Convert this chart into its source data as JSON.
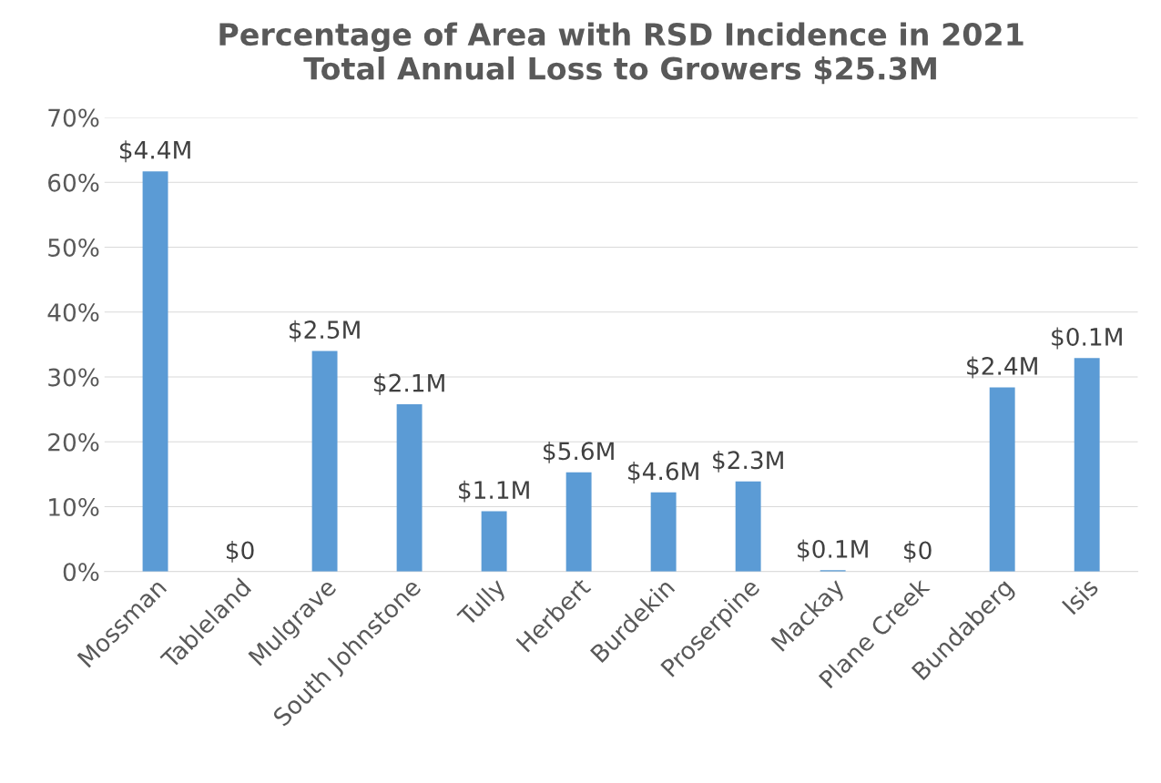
{
  "chart_data": {
    "type": "bar",
    "title": "Percentage of Area with RSD Incidence in 2021\nTotal Annual Loss to Growers $25.3M",
    "categories": [
      "Mossman",
      "Tableland",
      "Mulgrave",
      "South Johnstone",
      "Tully",
      "Herbert",
      "Burdekin",
      "Proserpine",
      "Mackay",
      "Plane Creek",
      "Bundaberg",
      "Isis"
    ],
    "values": [
      61.7,
      0,
      34.0,
      25.8,
      9.3,
      15.3,
      12.2,
      13.9,
      0.2,
      0,
      28.4,
      32.9
    ],
    "annotations": [
      {
        "text": "$4.4M",
        "x": "Mossman",
        "y": 61.7
      },
      {
        "text": "$0",
        "x": "Tableland",
        "y": 0
      },
      {
        "text": "$2.5M",
        "x": "Mulgrave",
        "y": 34.0
      },
      {
        "text": "$2.1M",
        "x": "South Johnstone",
        "y": 25.8
      },
      {
        "text": "$1.1M",
        "x": "Tully",
        "y": 9.3
      },
      {
        "text": "$5.6M",
        "x": "Herbert",
        "y": 15.3
      },
      {
        "text": "$4.6M",
        "x": "Burdekin",
        "y": 12.2
      },
      {
        "text": "$2.3M",
        "x": "Proserpine",
        "y": 13.9
      },
      {
        "text": "$0.1M",
        "x": "Mackay",
        "y": 0.2
      },
      {
        "text": "$0",
        "x": "Plane Creek",
        "y": 0
      },
      {
        "text": "$2.4M",
        "x": "Bundaberg",
        "y": 28.4
      },
      {
        "text": "$0.1M",
        "x": "Isis",
        "y": 32.9
      }
    ],
    "color": "#5b9bd5",
    "ylim": [
      0,
      70
    ],
    "yticks": [
      {
        "value": 0,
        "label": "0%"
      },
      {
        "value": 10,
        "label": "10%"
      },
      {
        "value": 20,
        "label": "20%"
      },
      {
        "value": 30,
        "label": "30%"
      },
      {
        "value": 40,
        "label": "40%"
      },
      {
        "value": 50,
        "label": "50%"
      },
      {
        "value": 60,
        "label": "60%"
      },
      {
        "value": 70,
        "label": "70%"
      }
    ],
    "grid": "y"
  }
}
